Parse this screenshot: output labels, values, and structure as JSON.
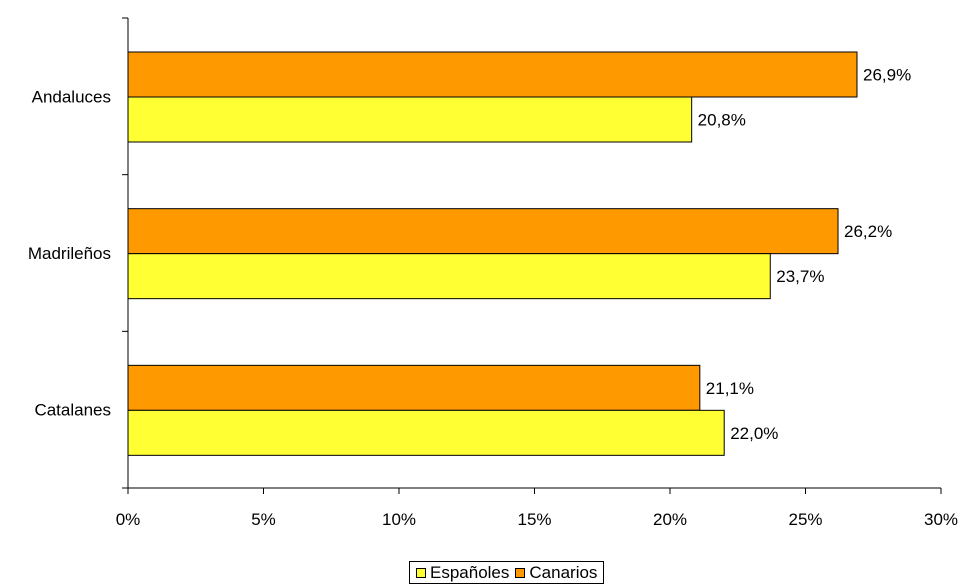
{
  "chart_data": {
    "type": "bar",
    "orientation": "horizontal",
    "title": "",
    "xlabel": "",
    "ylabel": "",
    "xlim": [
      0,
      30
    ],
    "x_ticks": [
      "0%",
      "5%",
      "10%",
      "15%",
      "20%",
      "25%",
      "30%"
    ],
    "categories": [
      "Andaluces",
      "Madrileños",
      "Catalanes"
    ],
    "series": [
      {
        "name": "Españoles",
        "color": "#FFFF33",
        "values": [
          20.8,
          23.7,
          22.0
        ],
        "labels": [
          "20,8%",
          "23,7%",
          "22,0%"
        ]
      },
      {
        "name": "Canarios",
        "color": "#FF9900",
        "values": [
          26.9,
          26.2,
          21.1
        ],
        "labels": [
          "26,9%",
          "26,2%",
          "21,1%"
        ]
      }
    ],
    "grid": false,
    "legend_position": "bottom-center"
  }
}
